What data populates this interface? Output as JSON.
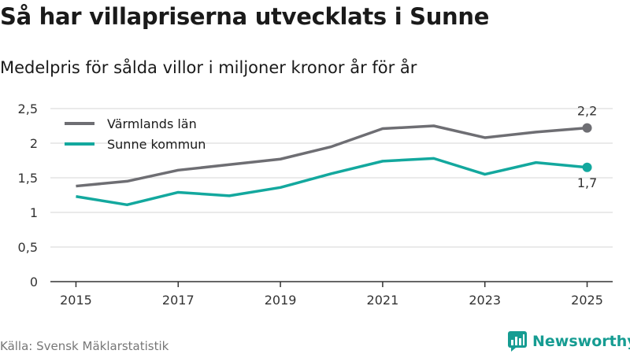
{
  "title": "Så har villapriserna utvecklats i Sunne",
  "subtitle": "Medelpris för sålda villor i miljoner kronor år för år",
  "source": "Källa: Svensk Mäklarstatistik",
  "brand": "Newsworthy",
  "colors": {
    "lan": "#6e6e73",
    "kommun": "#13a89e",
    "grid": "#d6d6d6",
    "brand": "#169c92"
  },
  "chart_data": {
    "type": "line",
    "x": [
      2015,
      2016,
      2017,
      2018,
      2019,
      2020,
      2021,
      2022,
      2023,
      2024,
      2025
    ],
    "series": [
      {
        "name": "Värmlands län",
        "values": [
          1.38,
          1.45,
          1.61,
          1.69,
          1.77,
          1.95,
          2.21,
          2.25,
          2.08,
          2.16,
          2.22
        ],
        "color": "#6e6e73",
        "end_label": "2,2"
      },
      {
        "name": "Sunne kommun",
        "values": [
          1.23,
          1.11,
          1.29,
          1.24,
          1.36,
          1.56,
          1.74,
          1.78,
          1.55,
          1.72,
          1.65
        ],
        "color": "#13a89e",
        "end_label": "1,7"
      }
    ],
    "xticks": [
      2015,
      2017,
      2019,
      2021,
      2023,
      2025
    ],
    "xtick_labels": [
      "2015",
      "2017",
      "2019",
      "2021",
      "2023",
      "2025"
    ],
    "yticks": [
      0,
      0.5,
      1,
      1.5,
      2,
      2.5
    ],
    "ytick_labels": [
      "0",
      "0,5",
      "1",
      "1,5",
      "2",
      "2,5"
    ],
    "ylim": [
      0,
      2.5
    ],
    "xlim": [
      2014.5,
      2025.5
    ],
    "legend": "top-left",
    "grid": true
  }
}
